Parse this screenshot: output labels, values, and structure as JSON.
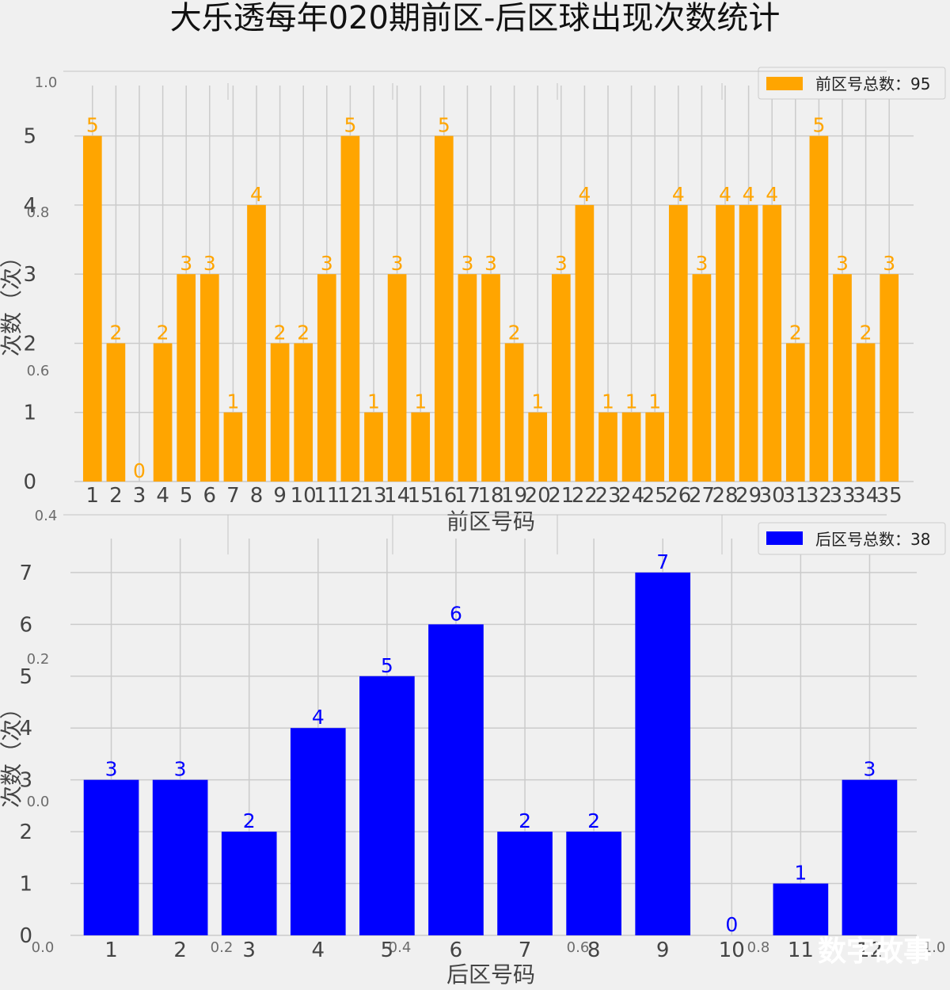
{
  "page": {
    "title": "大乐透每年020期前区-后区球出现次数统计",
    "watermark": "数字故事"
  },
  "background_overlay_ticks": {
    "y": [
      "1.0",
      "0.8",
      "0.6",
      "0.4",
      "0.2",
      "0.0"
    ],
    "x": [
      "0.0",
      "0.2",
      "0.4",
      "0.6",
      "0.8",
      "1.0"
    ]
  },
  "chart_data": [
    {
      "type": "bar",
      "color": "#FFA500",
      "legend": "前区号总数：95",
      "xlabel": "前区号码",
      "ylabel": "次数（次）",
      "categories": [
        "1",
        "2",
        "3",
        "4",
        "5",
        "6",
        "7",
        "8",
        "9",
        "10",
        "11",
        "12",
        "13",
        "14",
        "15",
        "16",
        "17",
        "18",
        "19",
        "20",
        "21",
        "22",
        "23",
        "24",
        "25",
        "26",
        "27",
        "28",
        "29",
        "30",
        "31",
        "32",
        "33",
        "34",
        "35"
      ],
      "values": [
        5,
        2,
        0,
        2,
        3,
        3,
        1,
        4,
        2,
        2,
        3,
        5,
        1,
        3,
        1,
        5,
        3,
        3,
        2,
        1,
        3,
        4,
        1,
        1,
        1,
        4,
        3,
        4,
        4,
        4,
        2,
        5,
        3,
        2,
        3
      ],
      "yticks": [
        0,
        1,
        2,
        3,
        4,
        5
      ],
      "ylim": [
        0,
        5.5
      ],
      "grid": true,
      "legend_position": "top-right"
    },
    {
      "type": "bar",
      "color": "#0000FF",
      "legend": "后区号总数：38",
      "xlabel": "后区号码",
      "ylabel": "次数（次）",
      "categories": [
        "1",
        "2",
        "3",
        "4",
        "5",
        "6",
        "7",
        "8",
        "9",
        "10",
        "11",
        "12"
      ],
      "values": [
        3,
        3,
        2,
        4,
        5,
        6,
        2,
        2,
        7,
        0,
        1,
        3
      ],
      "yticks": [
        0,
        1,
        2,
        3,
        4,
        5,
        6,
        7
      ],
      "ylim": [
        0,
        7.35
      ],
      "grid": true,
      "legend_position": "top-right"
    }
  ]
}
